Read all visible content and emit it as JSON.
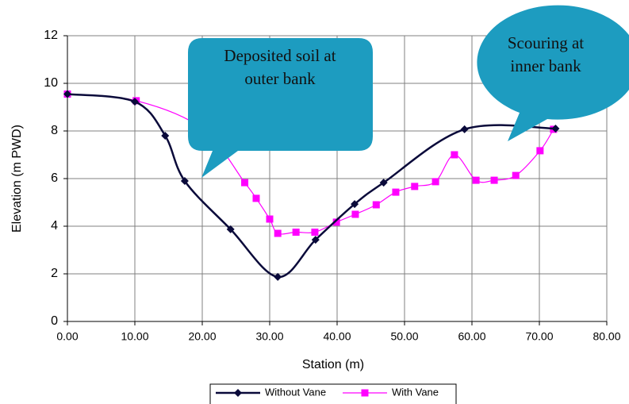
{
  "chart_data": {
    "type": "line",
    "x_label": "Station (m)",
    "y_label": "Elevation (m PWD)",
    "xlim": [
      0,
      80
    ],
    "xticks": [
      {
        "value": 0,
        "label": "0.00"
      },
      {
        "value": 10,
        "label": "10.00"
      },
      {
        "value": 20,
        "label": "20.00"
      },
      {
        "value": 30,
        "label": "30.00"
      },
      {
        "value": 40,
        "label": "40.00"
      },
      {
        "value": 50,
        "label": "50.00"
      },
      {
        "value": 60,
        "label": "60.00"
      },
      {
        "value": 70,
        "label": "70.00"
      },
      {
        "value": 80,
        "label": "80.00"
      }
    ],
    "ylim": [
      0,
      12
    ],
    "yticks": [
      0,
      2,
      4,
      6,
      8,
      10,
      12
    ],
    "grid": true,
    "smooth": true,
    "series": [
      {
        "name": "Without Vane",
        "color": "#0a0a3a",
        "marker": "diamond",
        "x": [
          0,
          10.0,
          14.5,
          17.4,
          24.2,
          31.2,
          36.8,
          42.6,
          46.9,
          58.9,
          72.4
        ],
        "values": [
          9.55,
          9.23,
          7.8,
          5.9,
          3.87,
          1.87,
          3.43,
          4.93,
          5.83,
          8.07,
          8.1
        ]
      },
      {
        "name": "With Vane",
        "color": "#ff00ff",
        "marker": "square",
        "x": [
          0,
          10.2,
          20,
          26.3,
          28,
          30,
          31.2,
          33.9,
          36.7,
          39.9,
          42.7,
          45.8,
          48.7,
          51.5,
          54.6,
          57.4,
          60.6,
          63.3,
          66.5,
          70.1,
          72.1
        ],
        "values": [
          9.55,
          9.27,
          8.1,
          5.83,
          5.17,
          4.3,
          3.7,
          3.75,
          3.75,
          4.17,
          4.5,
          4.9,
          5.43,
          5.67,
          5.87,
          7.0,
          5.93,
          5.93,
          6.13,
          7.17,
          8.07
        ]
      }
    ],
    "annotations": [
      {
        "lines": [
          "Deposited soil at",
          "outer bank"
        ]
      },
      {
        "lines": [
          "Scouring at",
          "inner bank"
        ]
      }
    ]
  }
}
